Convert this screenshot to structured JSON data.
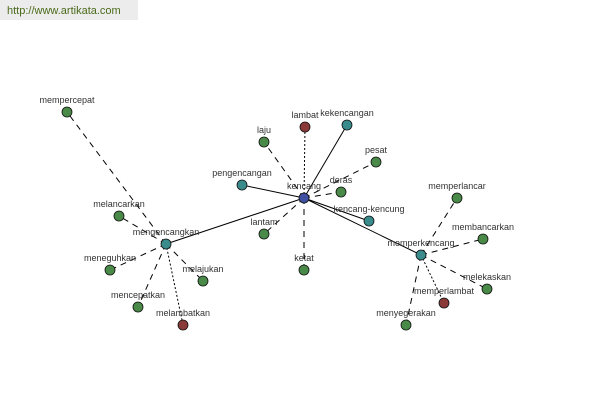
{
  "watermark": "http://www.artikata.com",
  "colors": {
    "central": "#4050a0",
    "related": "#3a8c8c",
    "synonym": "#4a8a48",
    "antonym": "#8b3a3a"
  },
  "nodes": [
    {
      "id": "kencang",
      "label": "kencang",
      "group": "central"
    },
    {
      "id": "lambat",
      "label": "lambat",
      "group": "antonym"
    },
    {
      "id": "kekencangan",
      "label": "kekencangan",
      "group": "related"
    },
    {
      "id": "laju",
      "label": "laju",
      "group": "synonym"
    },
    {
      "id": "pesat",
      "label": "pesat",
      "group": "synonym"
    },
    {
      "id": "pengencangan",
      "label": "pengencangan",
      "group": "related"
    },
    {
      "id": "deras",
      "label": "deras",
      "group": "synonym"
    },
    {
      "id": "kencang-kencung",
      "label": "kencang-kencung",
      "group": "related"
    },
    {
      "id": "lantam",
      "label": "lantam",
      "group": "synonym"
    },
    {
      "id": "ketat",
      "label": "ketat",
      "group": "synonym"
    },
    {
      "id": "mengencangkan",
      "label": "mengencangkan",
      "group": "related"
    },
    {
      "id": "memperkencang",
      "label": "memperkencang",
      "group": "related"
    },
    {
      "id": "mempercepat",
      "label": "mempercepat",
      "group": "synonym"
    },
    {
      "id": "melancarkan",
      "label": "melancarkan",
      "group": "synonym"
    },
    {
      "id": "meneguhkan",
      "label": "meneguhkan",
      "group": "synonym"
    },
    {
      "id": "melajukan",
      "label": "melajukan",
      "group": "synonym"
    },
    {
      "id": "mencepatkan",
      "label": "mencepatkan",
      "group": "synonym"
    },
    {
      "id": "melambatkan",
      "label": "melambatkan",
      "group": "antonym"
    },
    {
      "id": "memperlancar",
      "label": "memperlancar",
      "group": "synonym"
    },
    {
      "id": "membancarkan",
      "label": "membancarkan",
      "group": "synonym"
    },
    {
      "id": "melekaskan",
      "label": "melekaskan",
      "group": "synonym"
    },
    {
      "id": "memperlambat",
      "label": "memperlambat",
      "group": "antonym"
    },
    {
      "id": "menyegerakan",
      "label": "menyegerakan",
      "group": "synonym"
    }
  ],
  "edges": [
    {
      "from": "kencang",
      "to": "lambat",
      "style": "dotted"
    },
    {
      "from": "kencang",
      "to": "kekencangan",
      "style": "solid"
    },
    {
      "from": "kencang",
      "to": "laju",
      "style": "dashed"
    },
    {
      "from": "kencang",
      "to": "pesat",
      "style": "dashed"
    },
    {
      "from": "kencang",
      "to": "pengencangan",
      "style": "solid"
    },
    {
      "from": "kencang",
      "to": "deras",
      "style": "dashed"
    },
    {
      "from": "kencang",
      "to": "kencang-kencung",
      "style": "solid"
    },
    {
      "from": "kencang",
      "to": "lantam",
      "style": "dashed"
    },
    {
      "from": "kencang",
      "to": "ketat",
      "style": "dashed"
    },
    {
      "from": "kencang",
      "to": "mengencangkan",
      "style": "solid"
    },
    {
      "from": "kencang",
      "to": "memperkencang",
      "style": "solid"
    },
    {
      "from": "mengencangkan",
      "to": "mempercepat",
      "style": "dashed"
    },
    {
      "from": "mengencangkan",
      "to": "melancarkan",
      "style": "dashed"
    },
    {
      "from": "mengencangkan",
      "to": "meneguhkan",
      "style": "dashed"
    },
    {
      "from": "mengencangkan",
      "to": "melajukan",
      "style": "dashed"
    },
    {
      "from": "mengencangkan",
      "to": "mencepatkan",
      "style": "dashed"
    },
    {
      "from": "mengencangkan",
      "to": "melambatkan",
      "style": "dotted"
    },
    {
      "from": "memperkencang",
      "to": "memperlancar",
      "style": "dashed"
    },
    {
      "from": "memperkencang",
      "to": "membancarkan",
      "style": "dashed"
    },
    {
      "from": "memperkencang",
      "to": "melekaskan",
      "style": "dashed"
    },
    {
      "from": "memperkencang",
      "to": "memperlambat",
      "style": "dotted"
    },
    {
      "from": "memperkencang",
      "to": "menyegerakan",
      "style": "dashed"
    }
  ]
}
